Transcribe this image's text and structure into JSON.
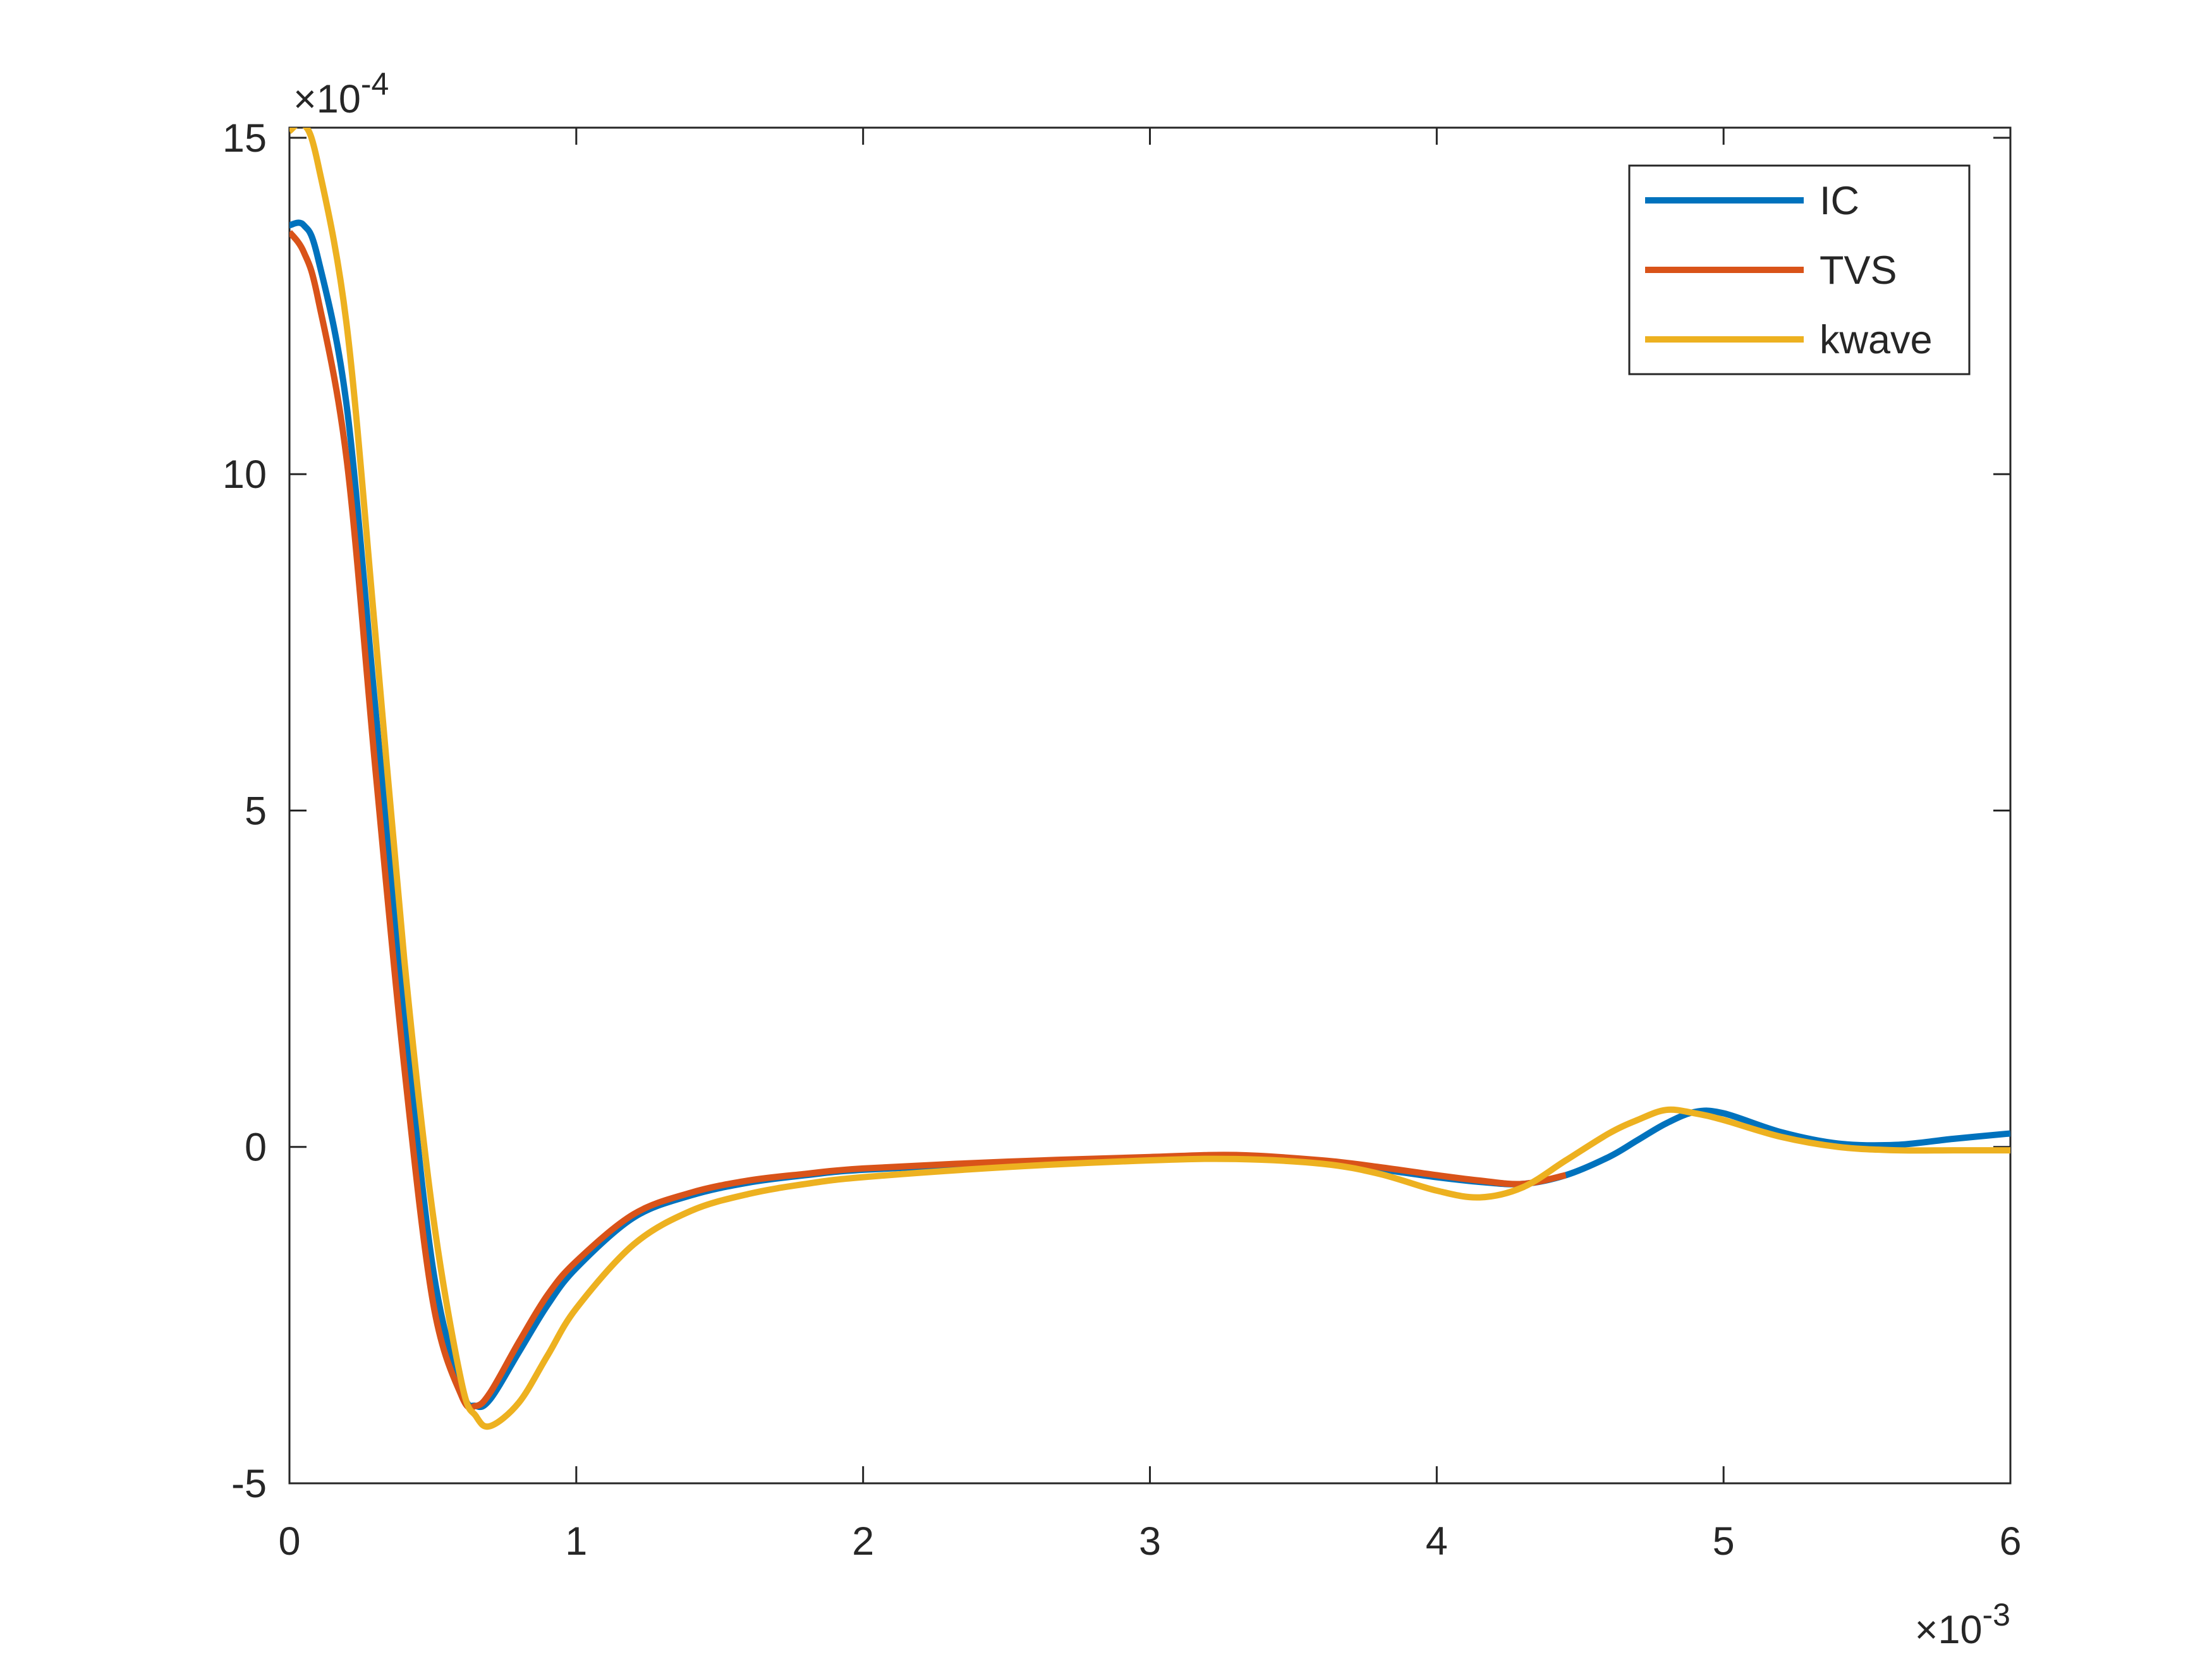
{
  "chart_data": {
    "type": "line",
    "x": [
      0,
      0.05,
      0.1,
      0.2,
      0.3,
      0.4,
      0.5,
      0.6,
      0.65,
      0.7,
      0.8,
      0.9,
      1.0,
      1.2,
      1.4,
      1.6,
      1.8,
      2.0,
      2.5,
      3.0,
      3.3,
      3.6,
      3.8,
      4.0,
      4.15,
      4.3,
      4.45,
      4.6,
      4.7,
      4.8,
      4.9,
      5.0,
      5.2,
      5.4,
      5.6,
      5.8,
      6.0
    ],
    "series": [
      {
        "name": "IC",
        "color": "#0072BD",
        "values": [
          13.7,
          13.7,
          13.2,
          11,
          6.5,
          2,
          -1.8,
          -3.6,
          -3.85,
          -3.75,
          -3.05,
          -2.35,
          -1.8,
          -1.05,
          -0.72,
          -0.53,
          -0.42,
          -0.34,
          -0.24,
          -0.17,
          -0.15,
          -0.22,
          -0.33,
          -0.45,
          -0.52,
          -0.55,
          -0.42,
          -0.15,
          0.1,
          0.35,
          0.52,
          0.5,
          0.22,
          0.05,
          0.03,
          0.12,
          0.2
        ]
      },
      {
        "name": "TVS",
        "color": "#D95319",
        "values": [
          13.6,
          13.3,
          12.6,
          10.2,
          5.6,
          1.2,
          -2.3,
          -3.7,
          -3.85,
          -3.65,
          -2.9,
          -2.2,
          -1.7,
          -1.0,
          -0.68,
          -0.5,
          -0.4,
          -0.32,
          -0.22,
          -0.15,
          -0.12,
          -0.2,
          -0.3,
          -0.42,
          -0.5,
          -0.55,
          -0.42,
          null,
          null,
          null,
          null,
          null,
          null,
          null,
          null,
          null,
          null
        ]
      },
      {
        "name": "kwave",
        "color": "#EDB120",
        "values": [
          15.1,
          15.2,
          14.6,
          12.2,
          7.6,
          2.8,
          -1.0,
          -3.5,
          -4.0,
          -4.15,
          -3.8,
          -3.1,
          -2.4,
          -1.45,
          -0.95,
          -0.7,
          -0.55,
          -0.45,
          -0.3,
          -0.2,
          -0.18,
          -0.25,
          -0.4,
          -0.65,
          -0.75,
          -0.6,
          -0.2,
          0.2,
          0.4,
          0.55,
          0.5,
          0.4,
          0.15,
          0.0,
          -0.05,
          -0.05,
          -0.05
        ]
      }
    ],
    "xlim": [
      0,
      6
    ],
    "xticks": [
      0,
      1,
      2,
      3,
      4,
      5,
      6
    ],
    "ylim": [
      -5,
      15.15
    ],
    "yticks": [
      -5,
      0,
      5,
      10,
      15
    ],
    "x_exponent": {
      "base": "×10",
      "power": "-3"
    },
    "y_exponent": {
      "base": "×10",
      "power": "-4"
    },
    "legend": "northeast",
    "grid": false,
    "box": true
  }
}
